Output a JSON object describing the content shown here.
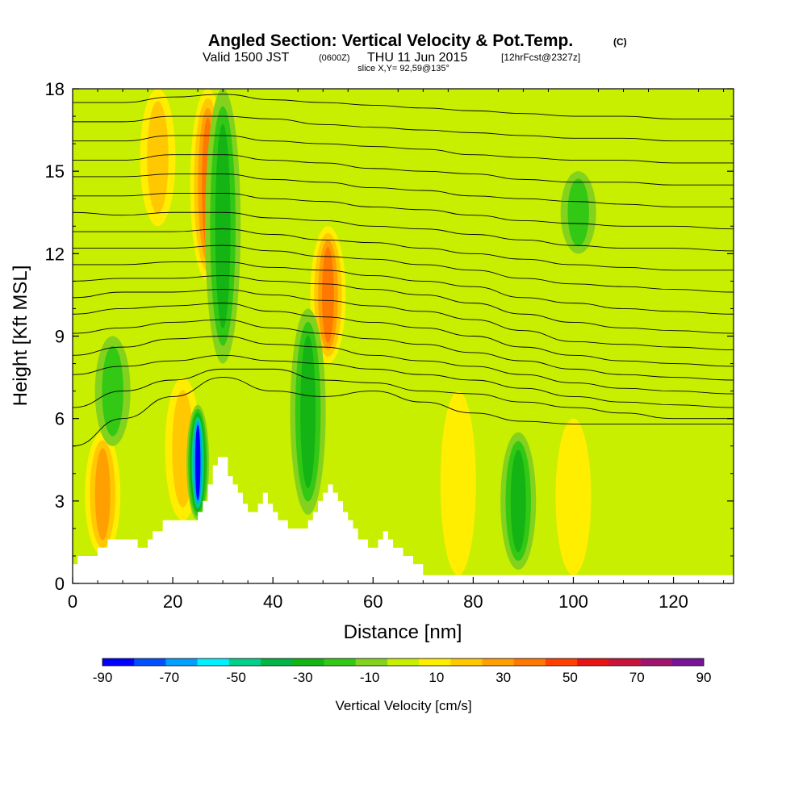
{
  "chart_data": {
    "type": "heatmap",
    "title": "Angled Section: Vertical Velocity & Pot.Temp.",
    "title_unit": "(C)",
    "subtitle": {
      "valid": "Valid 1500 JST",
      "utc": "(0600Z)",
      "date": "THU 11 Jun 2015",
      "fcst": "[12hrFcst@2327z]"
    },
    "slice": "slice X,Y= 92,59@135°",
    "xlabel": "Distance [nm]",
    "ylabel": "Height [Kft MSL]",
    "xlim": [
      0,
      132
    ],
    "ylim": [
      0,
      18
    ],
    "x_ticks": [
      0,
      20,
      40,
      60,
      80,
      100,
      120
    ],
    "y_ticks": [
      0,
      3,
      6,
      9,
      12,
      15,
      18
    ],
    "colorbar": {
      "label": "Vertical Velocity [cm/s]",
      "levels": [
        -90,
        -80,
        -70,
        -60,
        -50,
        -40,
        -30,
        -20,
        -10,
        0,
        10,
        20,
        30,
        40,
        50,
        60,
        70,
        80,
        90
      ],
      "tick_labels": [
        "-90",
        "-70",
        "-50",
        "-30",
        "-10",
        "10",
        "30",
        "50",
        "70",
        "90"
      ],
      "colors": [
        "#0000ff",
        "#0050ff",
        "#00a0ff",
        "#00f0ff",
        "#00d08c",
        "#00b446",
        "#14b414",
        "#32c814",
        "#82d21e",
        "#c8ee00",
        "#ffee00",
        "#ffc800",
        "#ffa000",
        "#ff7800",
        "#ff4000",
        "#e61414",
        "#c8143c",
        "#a0146e",
        "#781496"
      ]
    },
    "terrain_kft": {
      "x": [
        0,
        1,
        2,
        3,
        4,
        5,
        6,
        7,
        8,
        9,
        10,
        11,
        12,
        13,
        14,
        15,
        16,
        17,
        18,
        19,
        20,
        21,
        22,
        23,
        24,
        25,
        26,
        27,
        28,
        29,
        30,
        31,
        32,
        33,
        34,
        35,
        36,
        37,
        38,
        39,
        40,
        41,
        42,
        43,
        44,
        45,
        46,
        47,
        48,
        49,
        50,
        51,
        52,
        53,
        54,
        55,
        56,
        57,
        58,
        59,
        60,
        61,
        62,
        63,
        64,
        65,
        66,
        67,
        68,
        69,
        70,
        71,
        72,
        80,
        90,
        100,
        110,
        120,
        130,
        132
      ],
      "y": [
        0.7,
        1.0,
        1.0,
        1.0,
        1.0,
        1.3,
        1.3,
        1.6,
        1.6,
        1.6,
        1.6,
        1.6,
        1.6,
        1.3,
        1.3,
        1.6,
        1.9,
        1.9,
        2.3,
        2.3,
        2.3,
        2.3,
        2.3,
        2.3,
        2.3,
        2.6,
        3.0,
        3.6,
        4.3,
        4.6,
        4.6,
        3.9,
        3.6,
        3.3,
        2.9,
        2.6,
        2.6,
        2.9,
        3.3,
        2.9,
        2.6,
        2.3,
        2.3,
        2.0,
        2.0,
        2.0,
        2.0,
        2.3,
        2.6,
        3.0,
        3.3,
        3.6,
        3.3,
        3.0,
        2.6,
        2.3,
        2.0,
        1.6,
        1.6,
        1.3,
        1.3,
        1.6,
        1.9,
        1.6,
        1.3,
        1.3,
        1.0,
        1.0,
        0.7,
        0.7,
        0.3,
        0.3,
        0.3,
        0.3,
        0.3,
        0.3,
        0.3,
        0.3,
        0.3,
        0.3
      ]
    },
    "theta_isentropes_kft_at_x": {
      "x": [
        0,
        10,
        20,
        30,
        40,
        50,
        60,
        70,
        80,
        90,
        100,
        110,
        120,
        132
      ],
      "levels": [
        [
          5.0,
          6.0,
          6.8,
          7.5,
          7.0,
          6.8,
          7.0,
          6.6,
          6.2,
          5.9,
          5.8,
          5.8,
          5.8,
          5.8
        ],
        [
          6.4,
          7.0,
          7.4,
          7.8,
          7.8,
          7.4,
          7.3,
          7.0,
          6.9,
          6.6,
          6.4,
          6.2,
          6.0,
          6.0
        ],
        [
          7.6,
          7.9,
          8.1,
          8.3,
          8.1,
          8.0,
          7.8,
          7.6,
          7.4,
          7.1,
          6.8,
          6.6,
          6.5,
          6.4
        ],
        [
          8.3,
          8.6,
          8.9,
          9.0,
          8.7,
          8.6,
          8.3,
          8.1,
          7.9,
          7.6,
          7.3,
          7.1,
          7.0,
          6.9
        ],
        [
          9.1,
          9.3,
          9.5,
          9.6,
          9.3,
          9.1,
          8.9,
          8.7,
          8.4,
          8.1,
          7.8,
          7.6,
          7.5,
          7.4
        ],
        [
          9.8,
          10.0,
          10.1,
          10.2,
          9.9,
          9.7,
          9.5,
          9.3,
          9.0,
          8.6,
          8.3,
          8.1,
          8.0,
          7.9
        ],
        [
          10.4,
          10.6,
          10.6,
          10.7,
          10.5,
          10.3,
          10.1,
          9.9,
          9.6,
          9.2,
          8.8,
          8.7,
          8.6,
          8.5
        ],
        [
          11.0,
          11.1,
          11.1,
          11.2,
          11.0,
          10.9,
          10.7,
          10.5,
          10.2,
          9.8,
          9.5,
          9.3,
          9.2,
          9.1
        ],
        [
          11.6,
          11.6,
          11.7,
          11.7,
          11.5,
          11.4,
          11.2,
          11.0,
          10.8,
          10.4,
          10.2,
          10.0,
          9.9,
          9.8
        ],
        [
          12.2,
          12.2,
          12.2,
          12.3,
          12.1,
          11.9,
          11.8,
          11.6,
          11.4,
          11.1,
          10.9,
          10.8,
          10.7,
          10.6
        ],
        [
          12.8,
          12.8,
          12.8,
          12.9,
          12.7,
          12.5,
          12.4,
          12.2,
          12.0,
          11.8,
          11.6,
          11.5,
          11.4,
          11.4
        ],
        [
          13.5,
          13.4,
          13.5,
          13.5,
          13.3,
          13.2,
          13.0,
          12.9,
          12.7,
          12.5,
          12.3,
          12.2,
          12.2,
          12.1
        ],
        [
          14.1,
          14.1,
          14.2,
          14.2,
          14.0,
          13.9,
          13.7,
          13.6,
          13.4,
          13.2,
          13.1,
          13.0,
          13.0,
          12.9
        ],
        [
          14.8,
          14.8,
          14.9,
          14.9,
          14.7,
          14.6,
          14.4,
          14.3,
          14.1,
          14.0,
          13.9,
          13.8,
          13.7,
          13.7
        ],
        [
          15.4,
          15.4,
          15.6,
          15.6,
          15.4,
          15.3,
          15.1,
          15.0,
          14.9,
          14.7,
          14.6,
          14.6,
          14.5,
          14.5
        ],
        [
          16.1,
          16.1,
          16.3,
          16.3,
          16.1,
          16.0,
          15.9,
          15.8,
          15.6,
          15.5,
          15.4,
          15.4,
          15.3,
          15.3
        ],
        [
          16.8,
          16.8,
          17.0,
          17.0,
          16.9,
          16.7,
          16.6,
          16.5,
          16.4,
          16.3,
          16.2,
          16.2,
          16.1,
          16.1
        ],
        [
          17.5,
          17.5,
          17.7,
          17.8,
          17.6,
          17.5,
          17.4,
          17.3,
          17.2,
          17.1,
          17.0,
          17.0,
          16.9,
          16.9
        ]
      ]
    },
    "updraft_cores": [
      {
        "x": 22,
        "y0": 2.3,
        "y1": 7.5,
        "w": 20
      },
      {
        "x": 6,
        "y0": 1.0,
        "y1": 5.5,
        "w": 30
      },
      {
        "x": 27,
        "y0": 11.0,
        "y1": 18.0,
        "w": 40
      },
      {
        "x": 51,
        "y0": 8.0,
        "y1": 13.0,
        "w": 40
      },
      {
        "x": 17,
        "y0": 13.0,
        "y1": 18.0,
        "w": 20
      },
      {
        "x": 77,
        "y0": 0.3,
        "y1": 7.0,
        "w": 10
      },
      {
        "x": 100,
        "y0": 0.3,
        "y1": 6.0,
        "w": 10
      }
    ],
    "downdraft_cores": [
      {
        "x": 25,
        "y0": 2.3,
        "y1": 6.5,
        "w": -90
      },
      {
        "x": 30,
        "y0": 8.0,
        "y1": 18.0,
        "w": -30
      },
      {
        "x": 47,
        "y0": 2.5,
        "y1": 10.0,
        "w": -30
      },
      {
        "x": 89,
        "y0": 0.5,
        "y1": 5.5,
        "w": -30
      },
      {
        "x": 101,
        "y0": 12.0,
        "y1": 15.0,
        "w": -20
      },
      {
        "x": 8,
        "y0": 5.0,
        "y1": 9.0,
        "w": -20
      }
    ]
  }
}
